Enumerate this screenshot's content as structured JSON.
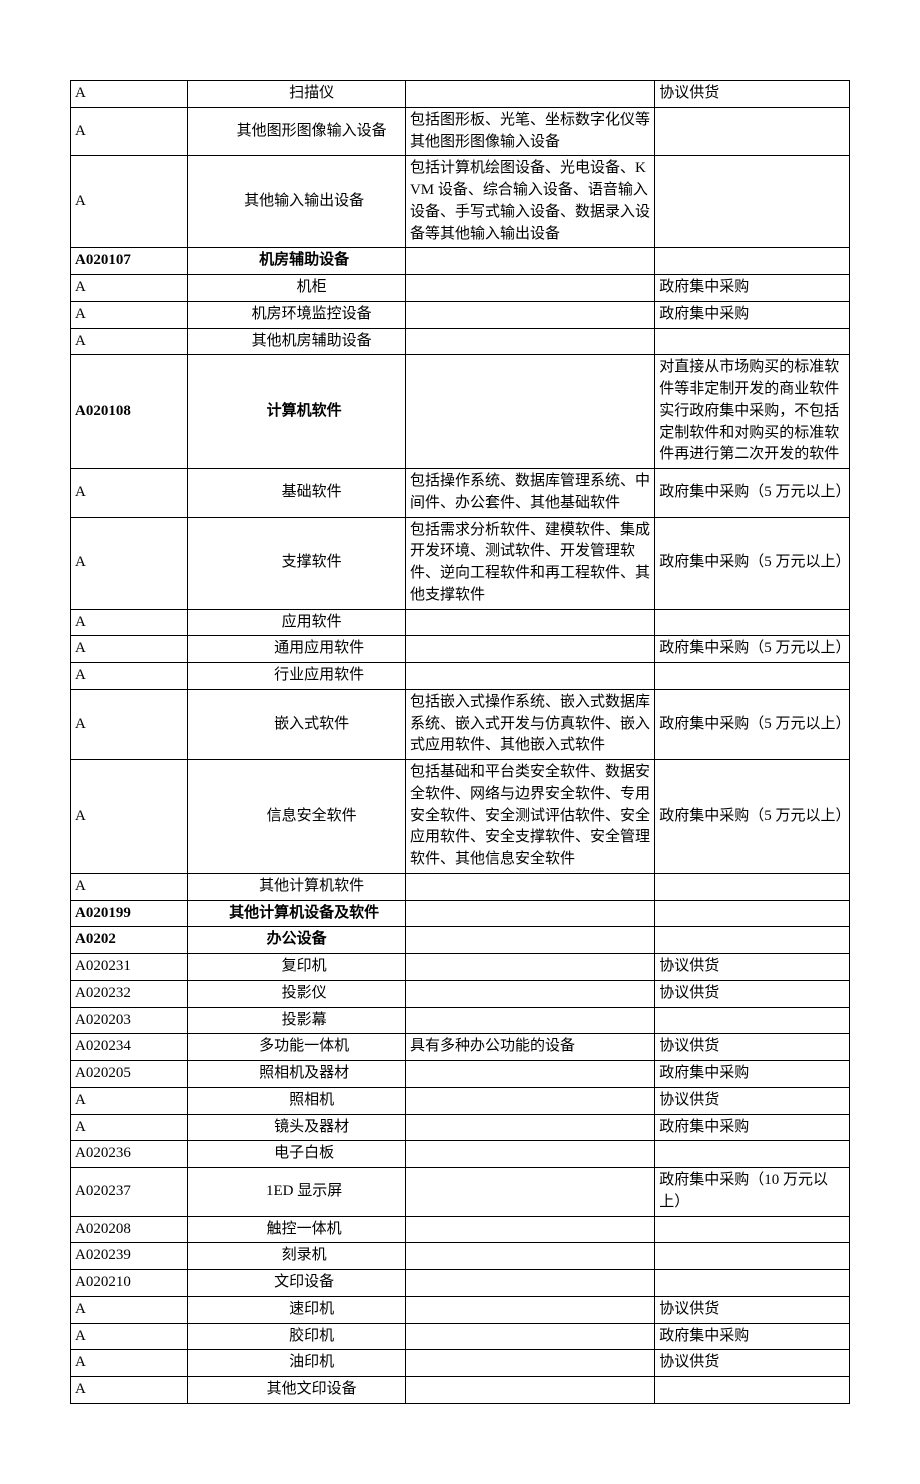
{
  "table": {
    "border_color": "#000000",
    "background_color": "#ffffff",
    "font_family": "SimSun",
    "font_size_pt": 11,
    "column_widths_pct": [
      15,
      28,
      32,
      25
    ],
    "rows": [
      {
        "cells": [
          "A",
          "扫描仪",
          "",
          "协议供货"
        ],
        "indent": 2
      },
      {
        "cells": [
          "A",
          "其他图形图像输入设备",
          "包括图形板、光笔、坐标数字化仪等其他图形图像输入设备",
          ""
        ],
        "indent": 2
      },
      {
        "cells": [
          "A",
          "其他输入输出设备",
          "包括计算机绘图设备、光电设备、KVM 设备、综合输入设备、语音输入设备、手写式输入设备、数据录入设备等其他输入输出设备",
          ""
        ],
        "indent": 1
      },
      {
        "cells": [
          "A020107",
          "机房辅助设备",
          "",
          ""
        ],
        "indent": 1,
        "bold": true
      },
      {
        "cells": [
          "A",
          "机柜",
          "",
          "政府集中采购"
        ],
        "indent": 2
      },
      {
        "cells": [
          "A",
          "机房环境监控设备",
          "",
          "政府集中采购"
        ],
        "indent": 2
      },
      {
        "cells": [
          "A",
          "其他机房辅助设备",
          "",
          ""
        ],
        "indent": 2
      },
      {
        "cells": [
          "A020108",
          "计算机软件",
          "",
          "对直接从市场购买的标准软件等非定制开发的商业软件实行政府集中采购，不包括定制软件和对购买的标准软件再进行第二次开发的软件"
        ],
        "indent": 1,
        "bold": true
      },
      {
        "cells": [
          "A",
          "基础软件",
          "包括操作系统、数据库管理系统、中间件、办公套件、其他基础软件",
          "政府集中采购（5 万元以上）"
        ],
        "indent": 2
      },
      {
        "cells": [
          "A",
          "支撑软件",
          "包括需求分析软件、建模软件、集成开发环境、测试软件、开发管理软件、逆向工程软件和再工程软件、其他支撑软件",
          "政府集中采购（5 万元以上）"
        ],
        "indent": 2
      },
      {
        "cells": [
          "A",
          "应用软件",
          "",
          ""
        ],
        "indent": 2
      },
      {
        "cells": [
          "A",
          "通用应用软件",
          "",
          "政府集中采购（5 万元以上）"
        ],
        "indent": 3
      },
      {
        "cells": [
          "A",
          "行业应用软件",
          "",
          ""
        ],
        "indent": 3
      },
      {
        "cells": [
          "A",
          "嵌入式软件",
          "包括嵌入式操作系统、嵌入式数据库系统、嵌入式开发与仿真软件、嵌入式应用软件、其他嵌入式软件",
          "政府集中采购（5 万元以上）"
        ],
        "indent": 2
      },
      {
        "cells": [
          "A",
          "信息安全软件",
          "包括基础和平台类安全软件、数据安全软件、网络与边界安全软件、专用安全软件、安全测试评估软件、安全应用软件、安全支撑软件、安全管理软件、其他信息安全软件",
          "政府集中采购（5 万元以上）"
        ],
        "indent": 2
      },
      {
        "cells": [
          "A",
          "其他计算机软件",
          "",
          ""
        ],
        "indent": 2
      },
      {
        "cells": [
          "A020199",
          "其他计算机设备及软件",
          "",
          ""
        ],
        "indent": 1,
        "bold": true
      },
      {
        "cells": [
          "A0202",
          "办公设备",
          "",
          ""
        ],
        "indent": 0,
        "bold": true
      },
      {
        "cells": [
          "A020231",
          "复印机",
          "",
          "协议供货"
        ],
        "indent": 1
      },
      {
        "cells": [
          "A020232",
          "投影仪",
          "",
          "协议供货"
        ],
        "indent": 1
      },
      {
        "cells": [
          "A020203",
          "投影幕",
          "",
          ""
        ],
        "indent": 1
      },
      {
        "cells": [
          "A020234",
          "多功能一体机",
          "具有多种办公功能的设备",
          "协议供货"
        ],
        "indent": 1
      },
      {
        "cells": [
          "A020205",
          "照相机及器材",
          "",
          "政府集中采购"
        ],
        "indent": 1
      },
      {
        "cells": [
          "A",
          "照相机",
          "",
          "协议供货"
        ],
        "indent": 2
      },
      {
        "cells": [
          "A",
          "镜头及器材",
          "",
          "政府集中采购"
        ],
        "indent": 2
      },
      {
        "cells": [
          "A020236",
          "电子白板",
          "",
          ""
        ],
        "indent": 1
      },
      {
        "cells": [
          "A020237",
          "1ED 显示屏",
          "",
          "政府集中采购（10 万元以上）"
        ],
        "indent": 1
      },
      {
        "cells": [
          "A020208",
          "触控一体机",
          "",
          ""
        ],
        "indent": 1
      },
      {
        "cells": [
          "A020239",
          "刻录机",
          "",
          ""
        ],
        "indent": 1
      },
      {
        "cells": [
          "A020210",
          "文印设备",
          "",
          ""
        ],
        "indent": 1
      },
      {
        "cells": [
          "A",
          "速印机",
          "",
          "协议供货"
        ],
        "indent": 2
      },
      {
        "cells": [
          "A",
          "胶印机",
          "",
          "政府集中采购"
        ],
        "indent": 2
      },
      {
        "cells": [
          "A",
          "油印机",
          "",
          "协议供货"
        ],
        "indent": 2
      },
      {
        "cells": [
          "A",
          "其他文印设备",
          "",
          ""
        ],
        "indent": 2
      }
    ],
    "indent_unit_em": 1.0
  }
}
